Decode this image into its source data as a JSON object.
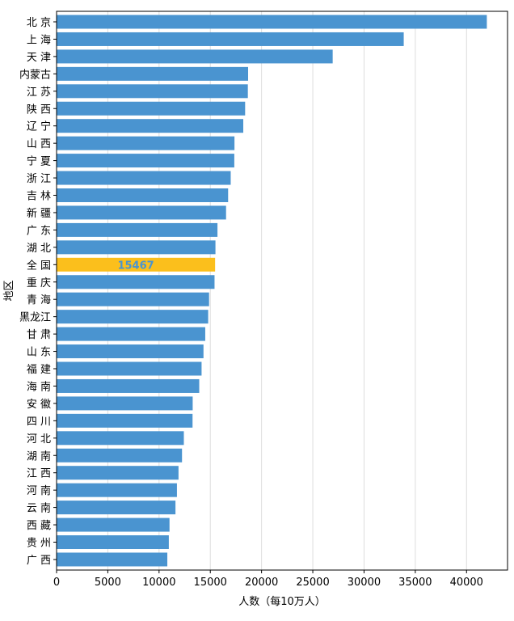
{
  "chart_data": {
    "type": "bar",
    "orientation": "horizontal",
    "title": "",
    "xlabel": "人数（每10万人）",
    "ylabel": "地区",
    "xlim": [
      0,
      44000
    ],
    "xticks": [
      0,
      5000,
      10000,
      15000,
      20000,
      25000,
      30000,
      35000,
      40000
    ],
    "grid": "vertical",
    "colors": {
      "bar": "#4a94d0",
      "highlight": "#fbbf1c",
      "label": "#4a94d0",
      "grid": "#dddddd"
    },
    "categories": [
      "北 京",
      "上 海",
      "天 津",
      "内蒙古",
      "江 苏",
      "陕 西",
      "辽 宁",
      "山 西",
      "宁 夏",
      "浙 江",
      "吉 林",
      "新 疆",
      "广 东",
      "湖 北",
      "全 国",
      "重 庆",
      "青 海",
      "黑龙江",
      "甘 肃",
      "山 东",
      "福 建",
      "海 南",
      "安 徽",
      "四 川",
      "河 北",
      "湖 南",
      "江 西",
      "河 南",
      "云 南",
      "西 藏",
      "贵 州",
      "广 西"
    ],
    "values": [
      41980,
      33872,
      26940,
      18688,
      18663,
      18397,
      18216,
      17358,
      17340,
      16990,
      16738,
      16536,
      15699,
      15502,
      15467,
      15412,
      14880,
      14793,
      14506,
      14334,
      14148,
      13919,
      13280,
      13267,
      12418,
      12239,
      11897,
      11744,
      11601,
      11019,
      10952,
      10806
    ],
    "highlight_index": 14,
    "highlight_label": "15467"
  }
}
